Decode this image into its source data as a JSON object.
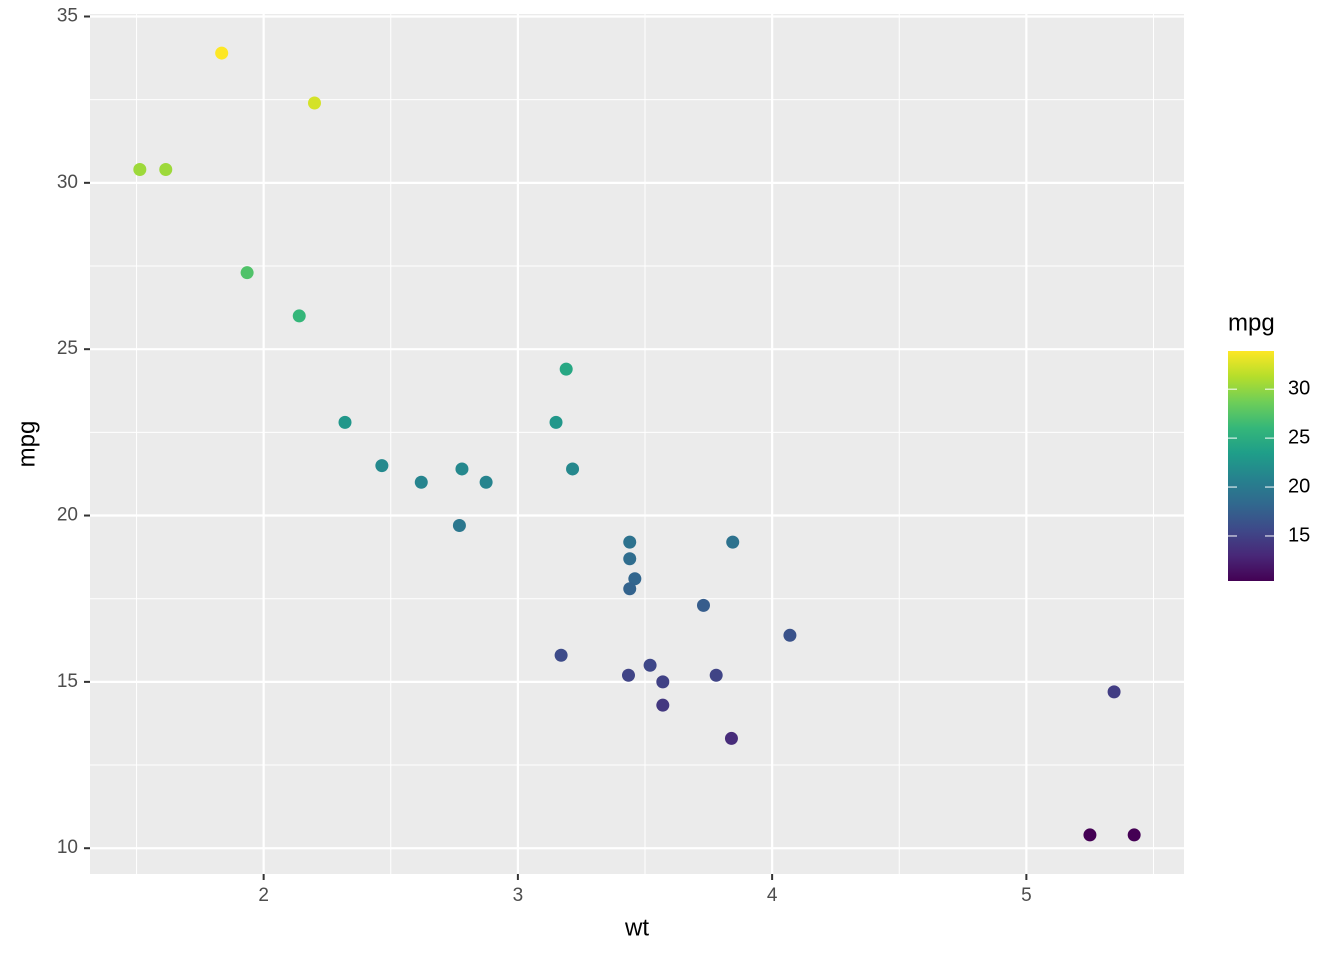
{
  "chart_data": {
    "type": "scatter",
    "x_label": "wt",
    "y_label": "mpg",
    "legend_title": "mpg",
    "x": [
      2.62,
      2.875,
      2.32,
      3.215,
      3.44,
      3.46,
      3.57,
      3.19,
      3.15,
      3.44,
      3.44,
      4.07,
      3.73,
      3.78,
      5.25,
      5.424,
      5.345,
      2.2,
      1.615,
      1.835,
      2.465,
      3.52,
      3.435,
      3.84,
      3.845,
      1.935,
      2.14,
      1.513,
      3.17,
      2.77,
      3.57,
      2.78
    ],
    "y": [
      21.0,
      21.0,
      22.8,
      21.4,
      18.7,
      18.1,
      14.3,
      24.4,
      22.8,
      19.2,
      17.8,
      16.4,
      17.3,
      15.2,
      10.4,
      10.4,
      14.7,
      32.4,
      30.4,
      33.9,
      21.5,
      15.5,
      15.2,
      13.3,
      19.2,
      27.3,
      26.0,
      30.4,
      15.8,
      19.7,
      15.0,
      21.4
    ],
    "xlim": [
      1.317,
      5.62
    ],
    "ylim": [
      9.225,
      35.075
    ],
    "xticks": [
      2,
      3,
      4,
      5
    ],
    "yticks": [
      10,
      15,
      20,
      25,
      30,
      35
    ],
    "x_minor_ticks": [
      1.5,
      2.5,
      3.5,
      4.5,
      5.5
    ],
    "y_minor_ticks": [
      12.5,
      17.5,
      22.5,
      27.5,
      32.5
    ],
    "grid": true,
    "colorscale": [
      "#440154",
      "#482878",
      "#3e4989",
      "#31688e",
      "#26828e",
      "#1f9e89",
      "#35b779",
      "#6ece58",
      "#b5de2b",
      "#fde725"
    ],
    "clim": [
      10.4,
      33.9
    ],
    "colorbar_ticks": [
      15,
      20,
      25,
      30
    ]
  }
}
